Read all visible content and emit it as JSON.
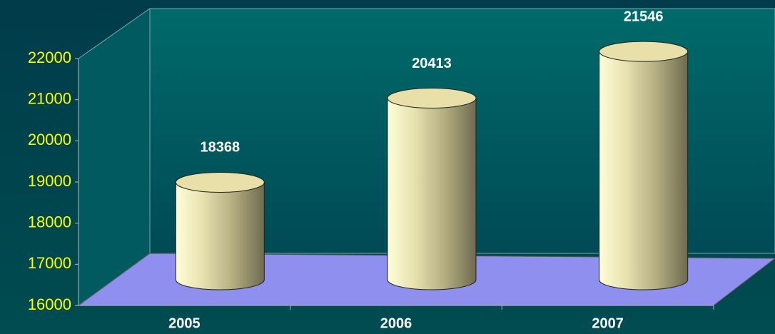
{
  "chart_data": {
    "type": "bar",
    "style": "3d-cylinder",
    "categories": [
      "2005",
      "2006",
      "2007"
    ],
    "values": [
      18368,
      20413,
      21546
    ],
    "color": "#e8e0a8",
    "floor_color": "#8f8ff0",
    "ylim": [
      16000,
      22000
    ],
    "yticks": [
      16000,
      17000,
      18000,
      19000,
      20000,
      21000,
      22000
    ],
    "grid": false
  }
}
